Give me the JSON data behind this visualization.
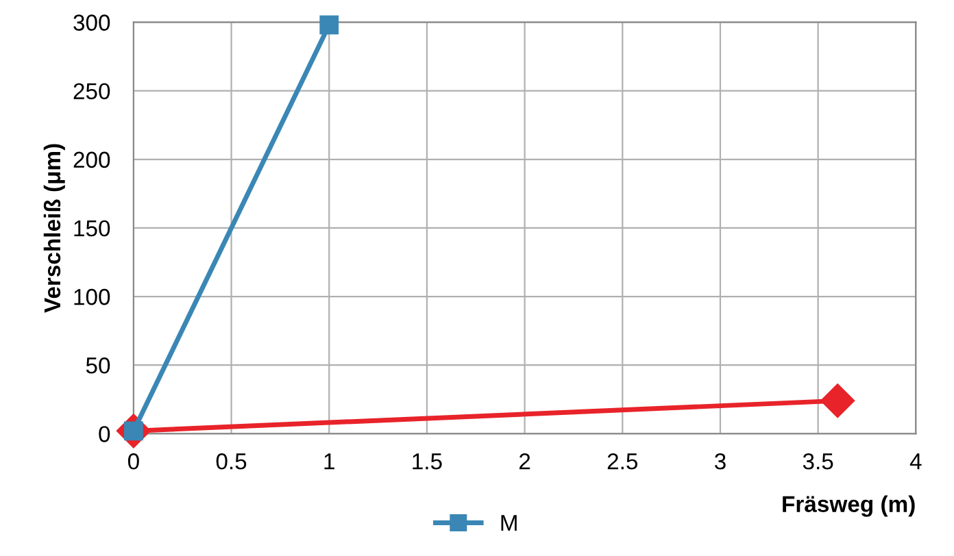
{
  "chart_data": {
    "type": "line",
    "ylabel": "Verschleiß (μm)",
    "xlabel": "Fräsweg (m)",
    "xlim": [
      0,
      4
    ],
    "xticks": [
      0,
      0.5,
      1,
      1.5,
      2,
      2.5,
      3,
      3.5,
      4
    ],
    "ylim": [
      0,
      300
    ],
    "yticks": [
      0,
      50,
      100,
      150,
      200,
      250,
      300
    ],
    "grid": true,
    "legend": "bottom",
    "series": [
      {
        "color": "#e8232a",
        "marker": "diamond",
        "x": [
          0,
          3.6
        ],
        "values": [
          2,
          24
        ]
      },
      {
        "name": "M",
        "color": "#3a87b5",
        "marker": "square",
        "x": [
          0,
          1
        ],
        "values": [
          2,
          298
        ]
      }
    ]
  }
}
